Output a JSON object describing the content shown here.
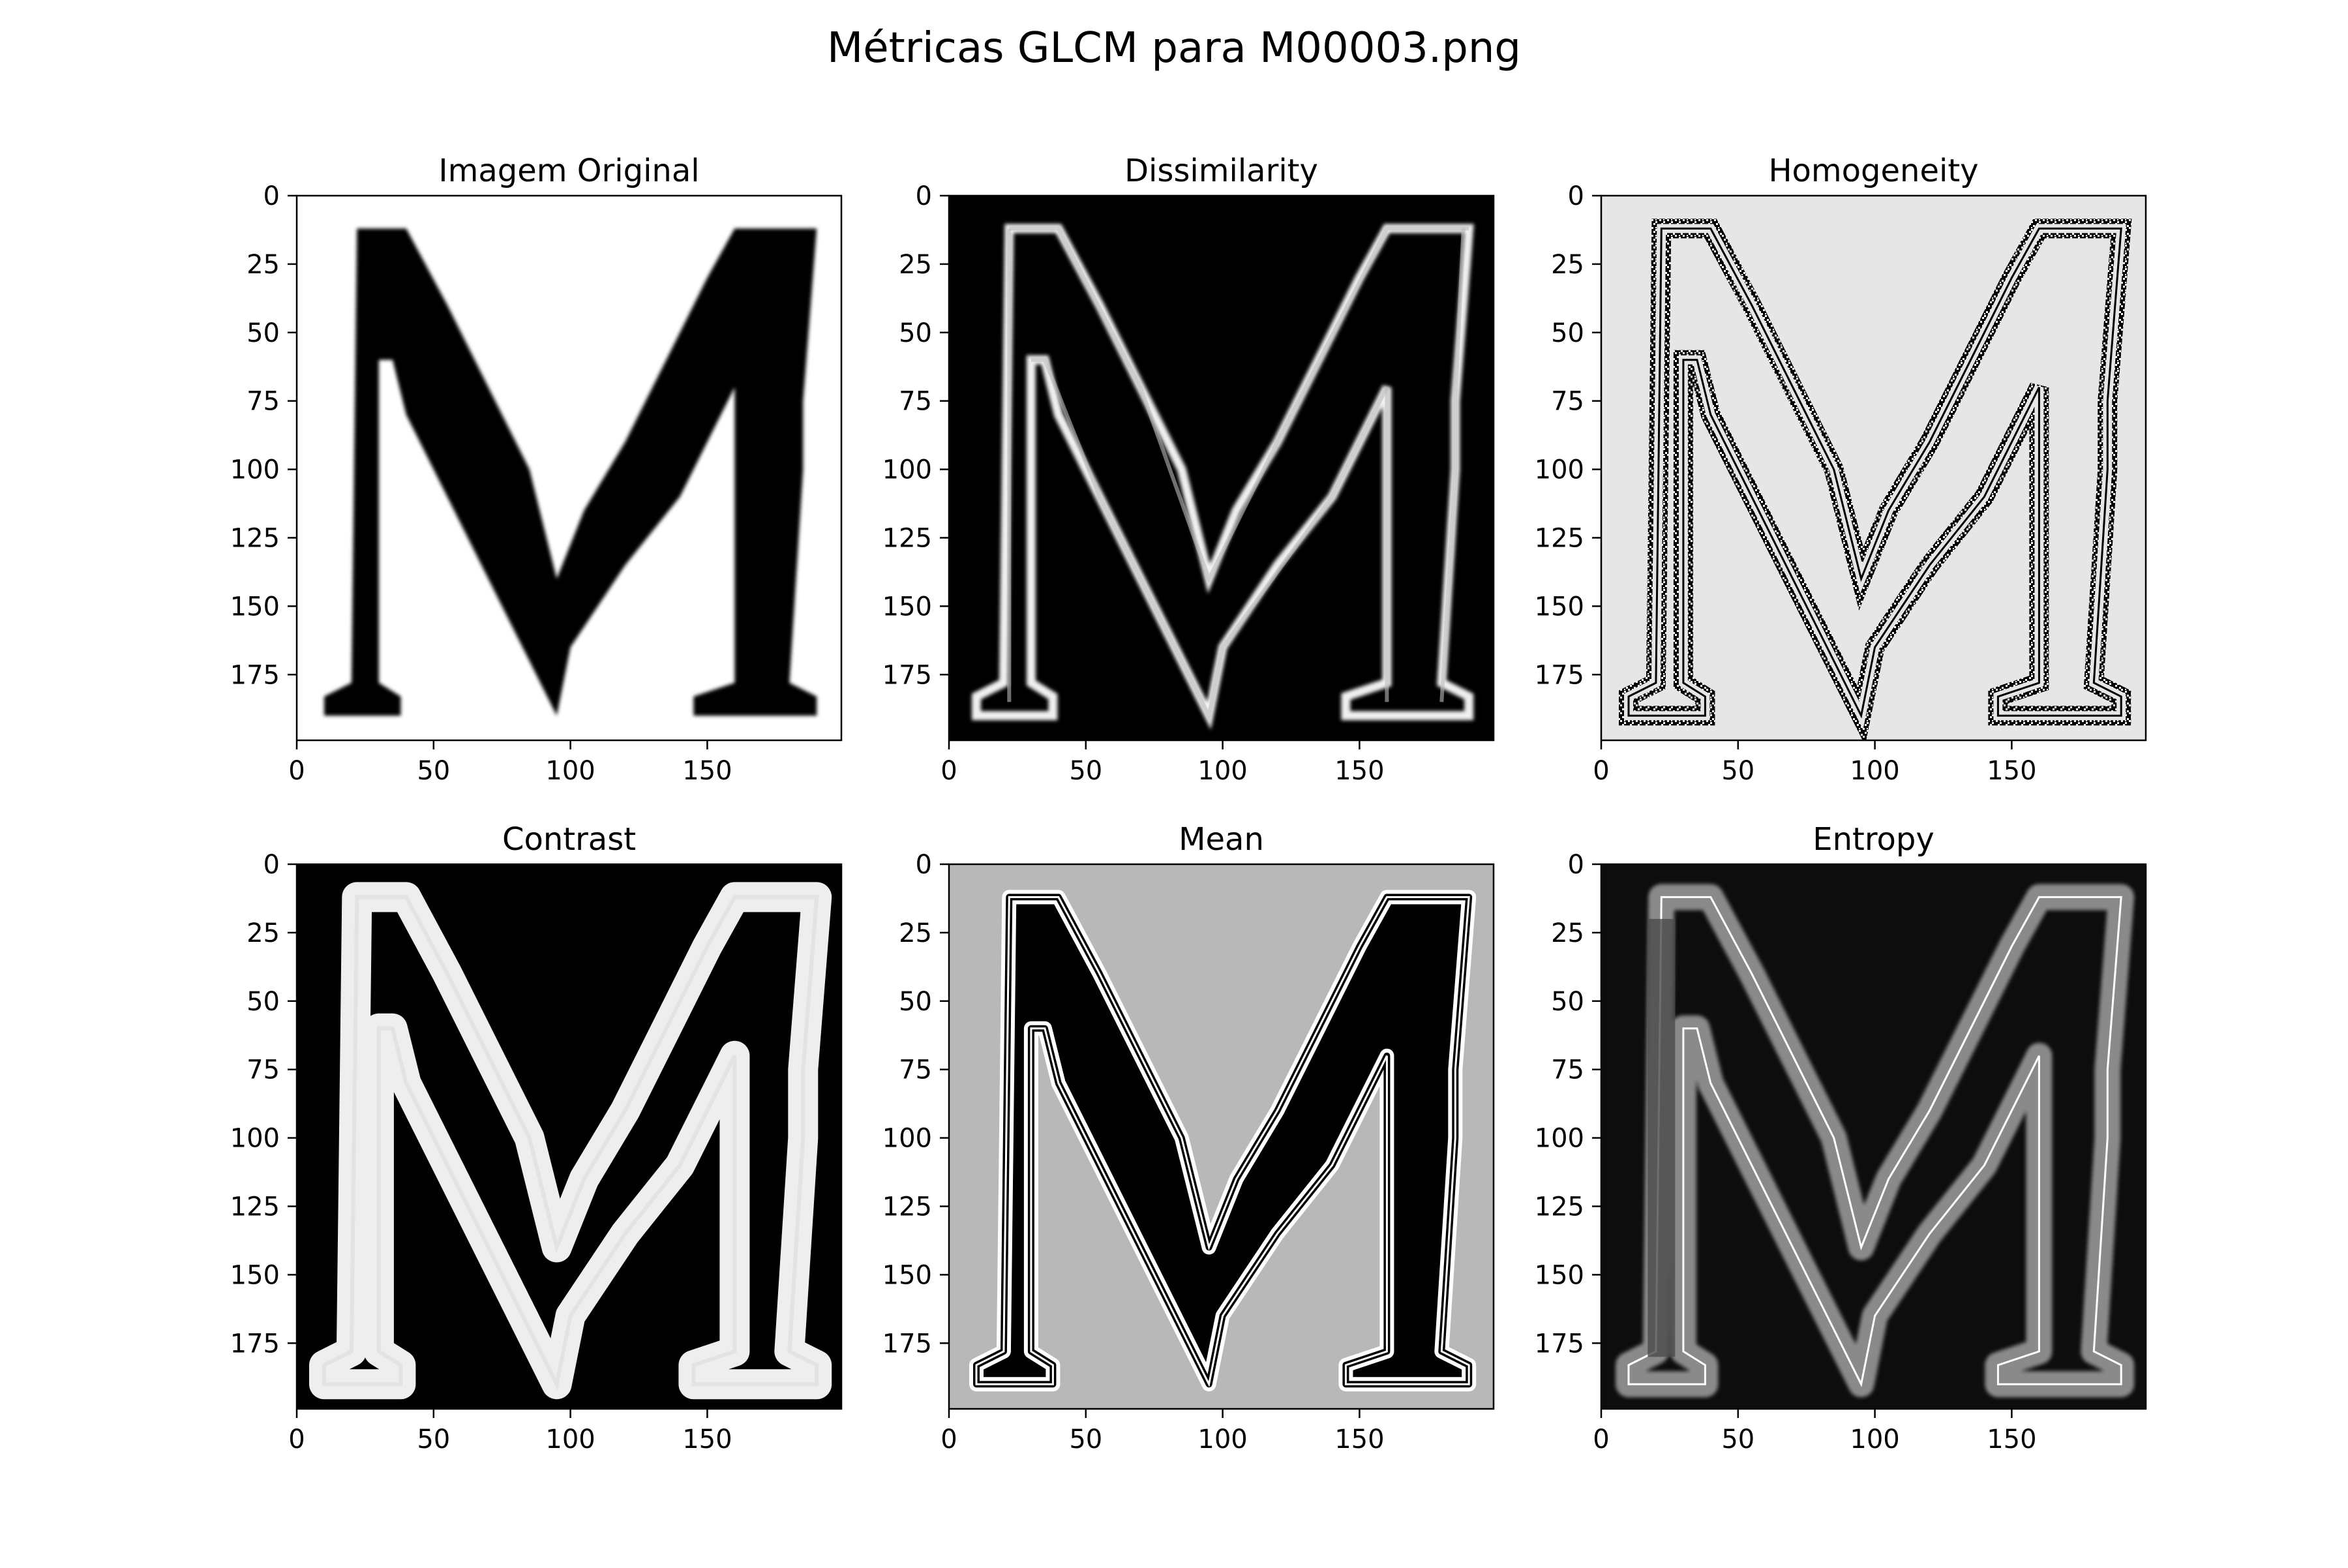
{
  "figure": {
    "title": "Métricas GLCM para M00003.png"
  },
  "chart_data": [
    {
      "type": "heatmap",
      "title": "Imagem Original",
      "colormap": "gray",
      "xlim": [
        0,
        199
      ],
      "ylim": [
        199,
        0
      ],
      "xticks": [
        0,
        50,
        100,
        150
      ],
      "yticks": [
        0,
        25,
        50,
        75,
        100,
        125,
        150,
        175
      ],
      "background": "#ffffff",
      "ink": "#000000"
    },
    {
      "type": "heatmap",
      "title": "Dissimilarity",
      "colormap": "gray",
      "xlim": [
        0,
        199
      ],
      "ylim": [
        199,
        0
      ],
      "xticks": [
        0,
        50,
        100,
        150
      ],
      "yticks": [
        0,
        25,
        50,
        75,
        100,
        125,
        150,
        175
      ],
      "background": "#000000",
      "ink": "#f0f0f0"
    },
    {
      "type": "heatmap",
      "title": "Homogeneity",
      "colormap": "gray",
      "xlim": [
        0,
        199
      ],
      "ylim": [
        199,
        0
      ],
      "xticks": [
        0,
        50,
        100,
        150
      ],
      "yticks": [
        0,
        25,
        50,
        75,
        100,
        125,
        150,
        175
      ],
      "background": "#e6e6e6",
      "ink": "#000000"
    },
    {
      "type": "heatmap",
      "title": "Contrast",
      "colormap": "gray",
      "xlim": [
        0,
        199
      ],
      "ylim": [
        199,
        0
      ],
      "xticks": [
        0,
        50,
        100,
        150
      ],
      "yticks": [
        0,
        25,
        50,
        75,
        100,
        125,
        150,
        175
      ],
      "background": "#000000",
      "ink": "#eeeeee"
    },
    {
      "type": "heatmap",
      "title": "Mean",
      "colormap": "gray",
      "xlim": [
        0,
        199
      ],
      "ylim": [
        199,
        0
      ],
      "xticks": [
        0,
        50,
        100,
        150
      ],
      "yticks": [
        0,
        25,
        50,
        75,
        100,
        125,
        150,
        175
      ],
      "background": "#b8b8b8",
      "ink": "#000000"
    },
    {
      "type": "heatmap",
      "title": "Entropy",
      "colormap": "gray",
      "xlim": [
        0,
        199
      ],
      "ylim": [
        199,
        0
      ],
      "xticks": [
        0,
        50,
        100,
        150
      ],
      "yticks": [
        0,
        25,
        50,
        75,
        100,
        125,
        150,
        175
      ],
      "background": "#0d0d0d",
      "ink": "#8a8a8a"
    }
  ]
}
